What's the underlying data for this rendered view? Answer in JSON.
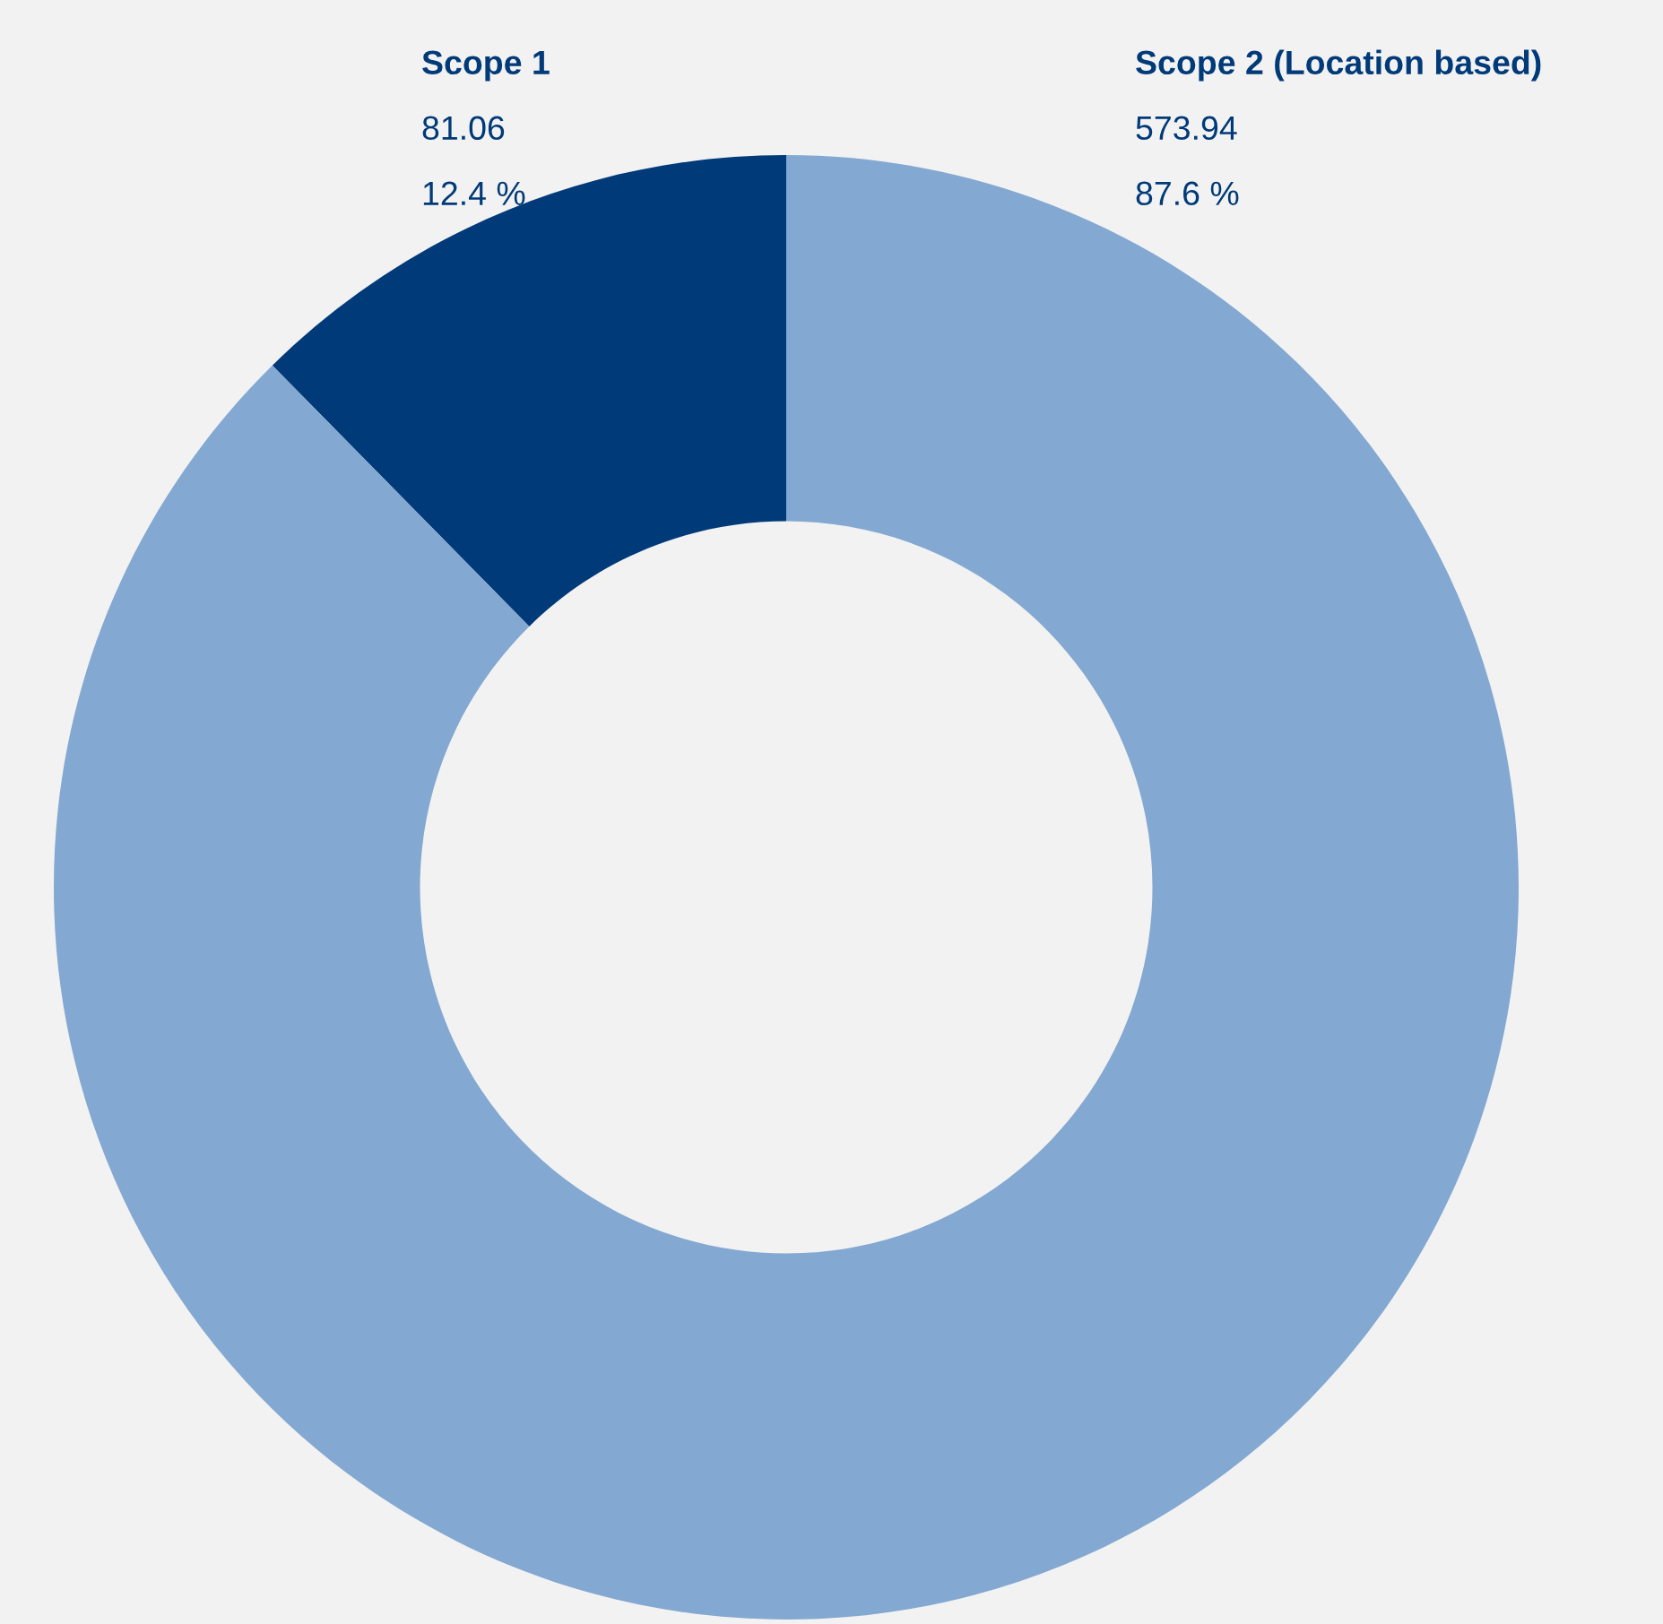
{
  "chart_data": {
    "type": "donut",
    "categories": [
      "Scope 1",
      "Scope 2 (Location based)"
    ],
    "values": [
      81.06,
      573.94
    ],
    "colors": [
      "#003a78",
      "#83a8d1"
    ],
    "data_labels": true,
    "annotations": [
      "12.4 %",
      "87.6 %"
    ]
  }
}
